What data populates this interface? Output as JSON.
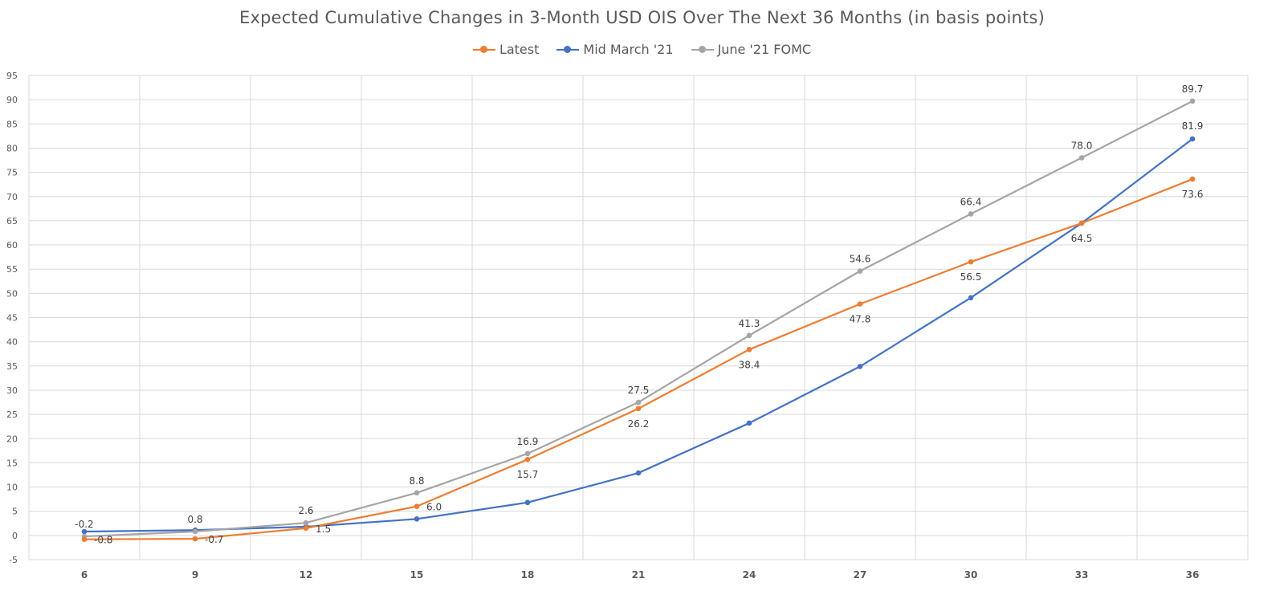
{
  "chart_data": {
    "type": "line",
    "title": "Expected Cumulative Changes in 3-Month USD OIS Over The Next 36 Months (in basis points)",
    "xlabel": "",
    "ylabel": "",
    "categories": [
      "6",
      "9",
      "12",
      "15",
      "18",
      "21",
      "24",
      "27",
      "30",
      "33",
      "36"
    ],
    "ylim": [
      -5,
      95
    ],
    "ytick_step": 5,
    "grid": true,
    "legend_position": "top",
    "series": [
      {
        "name": "Latest",
        "color": "#ED7D31",
        "values": [
          -0.8,
          -0.7,
          1.5,
          6.0,
          15.7,
          26.2,
          38.4,
          47.8,
          56.5,
          64.5,
          73.6
        ],
        "labels": [
          "-0.8",
          "-0.7",
          "1.5",
          "6.0",
          "15.7",
          "26.2",
          "38.4",
          "47.8",
          "56.5",
          "64.5",
          "73.6"
        ]
      },
      {
        "name": "Mid March '21",
        "color": "#4472C4",
        "values": [
          0.8,
          1.1,
          1.8,
          3.4,
          6.8,
          12.9,
          23.2,
          34.9,
          49.1,
          64.5,
          81.9
        ],
        "labels": [
          "",
          "",
          "",
          "",
          "",
          "",
          "",
          "",
          "",
          "",
          "81.9"
        ]
      },
      {
        "name": "June '21 FOMC",
        "color": "#A5A5A5",
        "values": [
          -0.2,
          0.8,
          2.6,
          8.8,
          16.9,
          27.5,
          41.3,
          54.6,
          66.4,
          78.0,
          89.7
        ],
        "labels": [
          "-0.2",
          "0.8",
          "2.6",
          "8.8",
          "16.9",
          "27.5",
          "41.3",
          "54.6",
          "66.4",
          "78.0",
          "89.7"
        ]
      }
    ]
  }
}
